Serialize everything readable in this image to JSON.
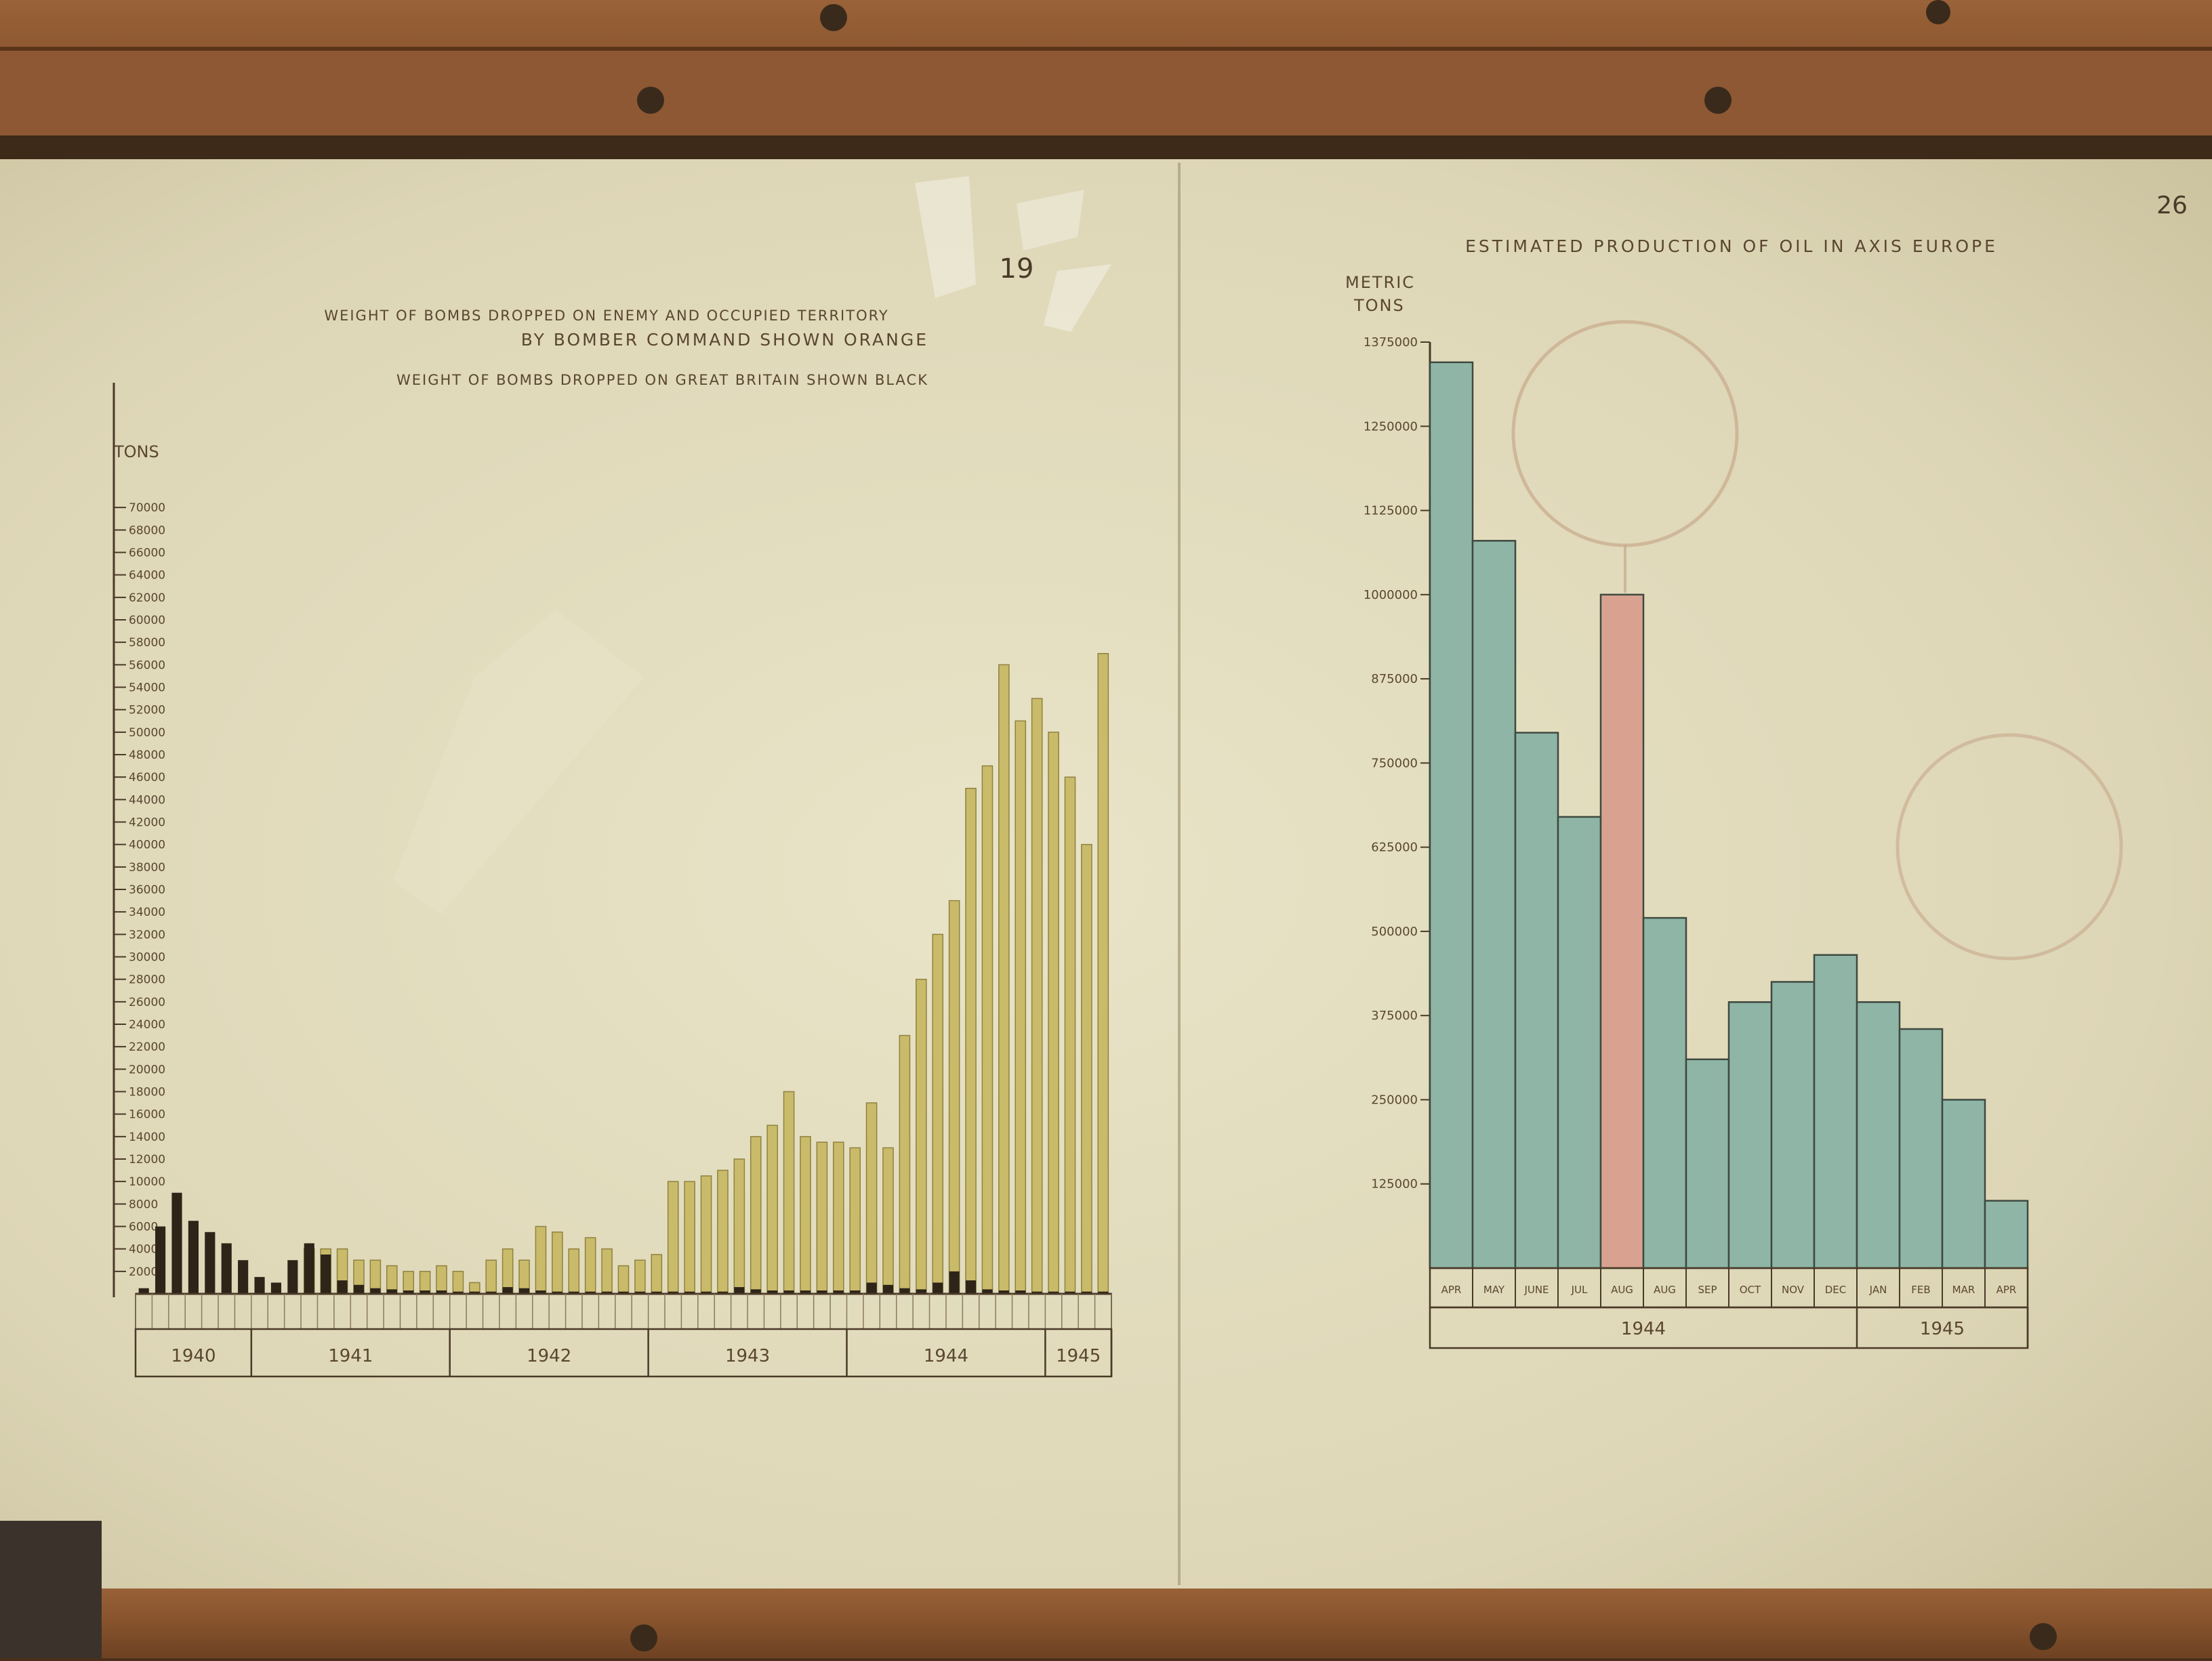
{
  "colors": {
    "frame": "#8a5530",
    "paper": "#e2dcbe",
    "orange_bars": "#c9bb6a",
    "black_bars": "#2e2418",
    "blue_bars": "#8fb5a6",
    "pink_bar": "#d9a290",
    "ink": "#4a3a28"
  },
  "page_numbers": {
    "left": "19",
    "right": "26"
  },
  "chart_data": [
    {
      "type": "bar",
      "title": "WEIGHT OF BOMBS DROPPED ON ENEMY AND OCCUPIED TERRITORY",
      "title_line2": "BY BOMBER COMMAND SHOWN ORANGE",
      "subtitle": "WEIGHT OF BOMBS DROPPED ON GREAT BRITAIN SHOWN BLACK",
      "ylabel": "TONS",
      "ylim": [
        0,
        72000
      ],
      "yticks": [
        2000,
        4000,
        6000,
        8000,
        10000,
        12000,
        14000,
        16000,
        18000,
        20000,
        22000,
        24000,
        26000,
        28000,
        30000,
        32000,
        34000,
        36000,
        38000,
        40000,
        42000,
        44000,
        46000,
        48000,
        50000,
        52000,
        54000,
        56000,
        58000,
        60000,
        62000,
        64000,
        66000,
        68000,
        70000
      ],
      "ytick_labels": [
        "2000",
        "4000",
        "6000",
        "8000",
        "10000",
        "12000",
        "14000",
        "16000",
        "18000",
        "20000",
        "22000",
        "24000",
        "26000",
        "28000",
        "30000",
        "32000",
        "34000",
        "36000",
        "38000",
        "40000",
        "42000",
        "44000",
        "46000",
        "48000",
        "50000",
        "52000",
        "54000",
        "56000",
        "58000",
        "60000",
        "62000",
        "64000",
        "66000",
        "68000",
        "70000"
      ],
      "year_groups": [
        {
          "label": "1940",
          "start": 0,
          "count": 7
        },
        {
          "label": "1941",
          "start": 7,
          "count": 12
        },
        {
          "label": "1942",
          "start": 19,
          "count": 12
        },
        {
          "label": "1943",
          "start": 31,
          "count": 12
        },
        {
          "label": "1944",
          "start": 43,
          "count": 12
        },
        {
          "label": "1945",
          "start": 55,
          "count": 4
        }
      ],
      "series": [
        {
          "name": "BOMBER COMMAND",
          "color": "orange",
          "values": [
            0,
            0,
            0,
            0,
            0,
            0,
            0,
            0,
            0,
            0,
            4000,
            4000,
            4000,
            3000,
            3000,
            2500,
            2000,
            2000,
            2500,
            2000,
            1000,
            3000,
            4000,
            3000,
            6000,
            5500,
            4000,
            5000,
            4000,
            2500,
            3000,
            3500,
            10000,
            10000,
            10500,
            11000,
            12000,
            14000,
            15000,
            18000,
            14000,
            13500,
            13500,
            13000,
            17000,
            13000,
            23000,
            28000,
            32000,
            35000,
            45000,
            47000,
            56000,
            51000,
            53000,
            50000,
            46000,
            40000,
            57000
          ]
        },
        {
          "name": "GREAT BRITAIN",
          "color": "black",
          "values": [
            500,
            6000,
            9000,
            6500,
            5500,
            4500,
            3000,
            1500,
            1000,
            3000,
            4500,
            3500,
            1200,
            800,
            500,
            400,
            300,
            300,
            300,
            200,
            200,
            200,
            600,
            500,
            300,
            200,
            200,
            200,
            200,
            200,
            200,
            200,
            200,
            200,
            200,
            200,
            600,
            400,
            300,
            300,
            300,
            300,
            300,
            300,
            1000,
            800,
            500,
            400,
            1000,
            2000,
            1200,
            400,
            300,
            300,
            200,
            200,
            200,
            200,
            200
          ]
        }
      ]
    },
    {
      "type": "bar",
      "title": "ESTIMATED PRODUCTION OF OIL IN AXIS EUROPE",
      "ylabel": "METRIC TONS",
      "ylim": [
        0,
        1375000
      ],
      "yticks": [
        125000,
        250000,
        375000,
        500000,
        625000,
        750000,
        875000,
        1000000,
        1125000,
        1250000,
        1375000
      ],
      "ytick_labels": [
        "125000",
        "250000",
        "375000",
        "500000",
        "625000",
        "750000",
        "875000",
        "1000000",
        "1125000",
        "1250000",
        "1375000"
      ],
      "categories": [
        "APR",
        "MAY",
        "JUNE",
        "JUL",
        "AUG",
        "AUG",
        "SEP",
        "OCT",
        "NOV",
        "DEC",
        "JAN",
        "FEB",
        "MAR",
        "APR"
      ],
      "values": [
        1345000,
        1080000,
        795000,
        670000,
        1000000,
        520000,
        310000,
        395000,
        425000,
        465000,
        395000,
        355000,
        250000,
        100000
      ],
      "highlight_index": 4,
      "year_groups": [
        {
          "label": "1944",
          "start": 0,
          "count": 10
        },
        {
          "label": "1945",
          "start": 10,
          "count": 4
        }
      ]
    }
  ]
}
